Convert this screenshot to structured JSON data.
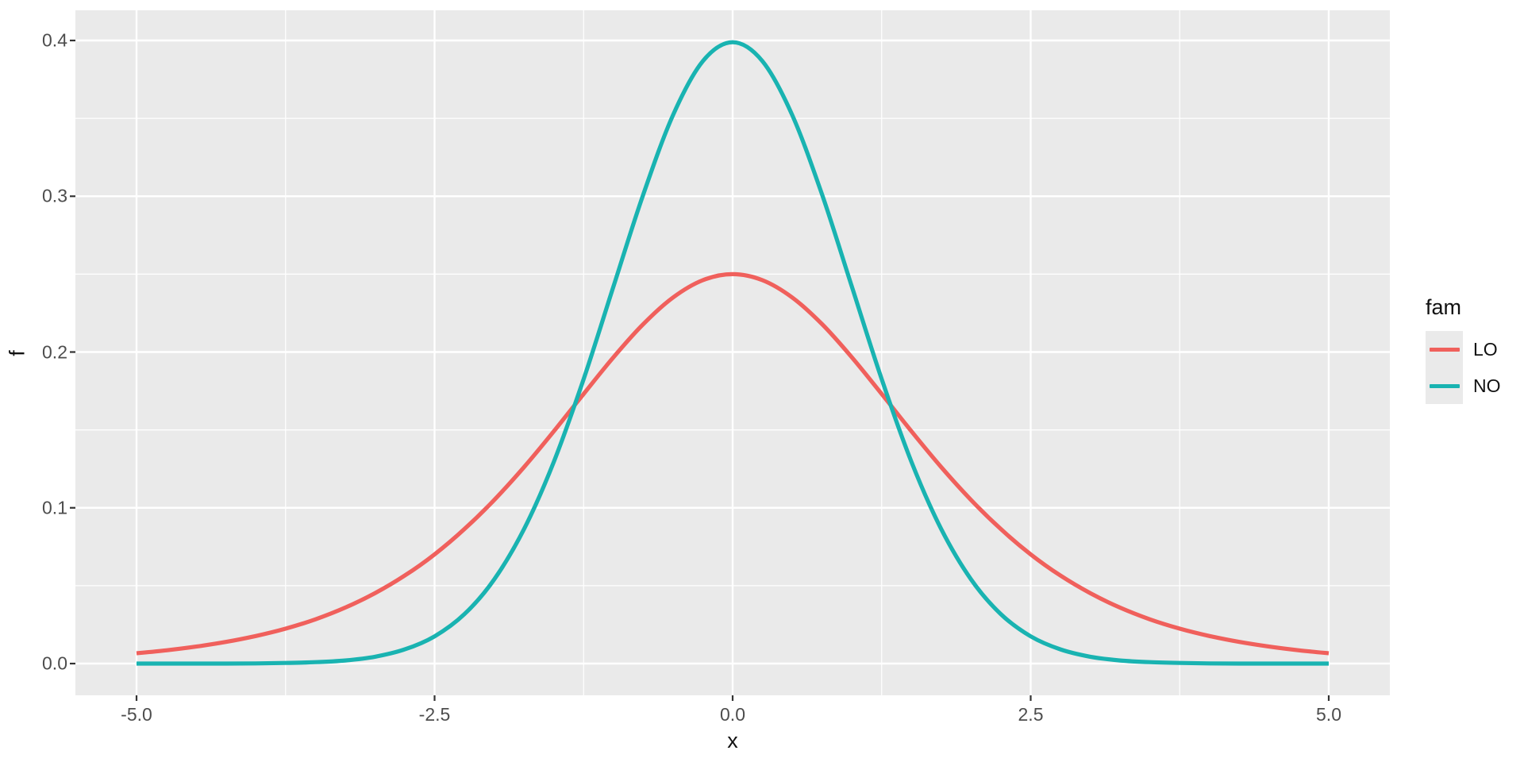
{
  "chart_data": {
    "type": "line",
    "title": "",
    "xlabel": "x",
    "ylabel": "f",
    "xlim": [
      -5,
      5
    ],
    "ylim": [
      0,
      0.4
    ],
    "grid": true,
    "panel_bg": "#EAEAEA",
    "grid_color": "#FFFFFF",
    "tick_color": "#333333",
    "tick_label_color": "#4D4D4D",
    "x_ticks": {
      "values": [
        -5,
        -2.5,
        0,
        2.5,
        5
      ],
      "labels": [
        "-5.0",
        "-2.5",
        "0.0",
        "2.5",
        "5.0"
      ],
      "minor": [
        -3.75,
        -1.25,
        1.25,
        3.75
      ]
    },
    "y_ticks": {
      "values": [
        0,
        0.1,
        0.2,
        0.3,
        0.4
      ],
      "labels": [
        "0.0",
        "0.1",
        "0.2",
        "0.3",
        "0.4"
      ],
      "minor": [
        0.05,
        0.15,
        0.25,
        0.35
      ]
    },
    "legend": {
      "title": "fam",
      "position": "right"
    },
    "x": [
      -5,
      -4.75,
      -4.5,
      -4.25,
      -4,
      -3.75,
      -3.5,
      -3.25,
      -3,
      -2.75,
      -2.5,
      -2.25,
      -2,
      -1.75,
      -1.5,
      -1.25,
      -1,
      -0.75,
      -0.5,
      -0.25,
      0,
      0.25,
      0.5,
      0.75,
      1,
      1.25,
      1.5,
      1.75,
      2,
      2.25,
      2.5,
      2.75,
      3,
      3.25,
      3.5,
      3.75,
      4,
      4.25,
      4.5,
      4.75,
      5
    ],
    "series": [
      {
        "name": "LO",
        "color": "#F0605C",
        "values": [
          0.0066,
          0.0085,
          0.0109,
          0.0139,
          0.0177,
          0.0224,
          0.0284,
          0.0359,
          0.0452,
          0.0565,
          0.0701,
          0.0863,
          0.105,
          0.1261,
          0.1491,
          0.1731,
          0.1966,
          0.2179,
          0.235,
          0.2461,
          0.25,
          0.2461,
          0.235,
          0.2179,
          0.1966,
          0.1731,
          0.1491,
          0.1261,
          0.105,
          0.0863,
          0.0701,
          0.0565,
          0.0452,
          0.0359,
          0.0284,
          0.0224,
          0.0177,
          0.0139,
          0.0109,
          0.0085,
          0.0066
        ]
      },
      {
        "name": "NO",
        "color": "#19B3B1",
        "values": [
          0.0,
          0.0,
          0.0,
          0.0,
          0.0001,
          0.0004,
          0.0009,
          0.002,
          0.0044,
          0.0091,
          0.0175,
          0.0317,
          0.054,
          0.0863,
          0.1295,
          0.1826,
          0.242,
          0.3011,
          0.3521,
          0.3867,
          0.3989,
          0.3867,
          0.3521,
          0.3011,
          0.242,
          0.1826,
          0.1295,
          0.0863,
          0.054,
          0.0317,
          0.0175,
          0.0091,
          0.0044,
          0.002,
          0.0009,
          0.0004,
          0.0001,
          0.0,
          0.0,
          0.0,
          0.0
        ]
      }
    ]
  }
}
